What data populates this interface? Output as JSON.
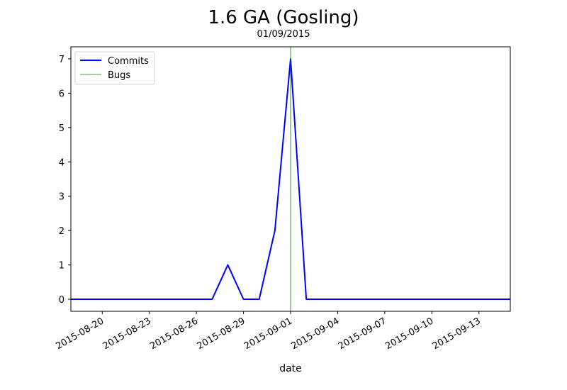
{
  "chart_data": {
    "type": "line",
    "title": "1.6 GA (Gosling)",
    "subtitle": "01/09/2015",
    "xlabel": "date",
    "ylabel": "",
    "x_range": [
      "2015-08-18",
      "2015-09-15"
    ],
    "ylim": [
      -0.35,
      7.35
    ],
    "yticks": [
      0,
      1,
      2,
      3,
      4,
      5,
      6,
      7
    ],
    "xticks": [
      "2015-08-20",
      "2015-08-23",
      "2015-08-26",
      "2015-08-29",
      "2015-09-01",
      "2015-09-04",
      "2015-09-07",
      "2015-09-10",
      "2015-09-13"
    ],
    "grid": false,
    "legend_position": "top-left",
    "series": [
      {
        "name": "Commits",
        "color": "#0000ff",
        "points": [
          [
            "2015-08-18",
            0
          ],
          [
            "2015-08-19",
            0
          ],
          [
            "2015-08-20",
            0
          ],
          [
            "2015-08-21",
            0
          ],
          [
            "2015-08-22",
            0
          ],
          [
            "2015-08-23",
            0
          ],
          [
            "2015-08-24",
            0
          ],
          [
            "2015-08-25",
            0
          ],
          [
            "2015-08-26",
            0
          ],
          [
            "2015-08-27",
            0
          ],
          [
            "2015-08-28",
            1
          ],
          [
            "2015-08-29",
            0
          ],
          [
            "2015-08-30",
            0
          ],
          [
            "2015-08-31",
            2
          ],
          [
            "2015-09-01",
            7
          ],
          [
            "2015-09-02",
            0
          ],
          [
            "2015-09-03",
            0
          ],
          [
            "2015-09-04",
            0
          ],
          [
            "2015-09-05",
            0
          ],
          [
            "2015-09-06",
            0
          ],
          [
            "2015-09-07",
            0
          ],
          [
            "2015-09-08",
            0
          ],
          [
            "2015-09-09",
            0
          ],
          [
            "2015-09-10",
            0
          ],
          [
            "2015-09-11",
            0
          ],
          [
            "2015-09-12",
            0
          ],
          [
            "2015-09-13",
            0
          ],
          [
            "2015-09-14",
            0
          ],
          [
            "2015-09-15",
            0
          ]
        ]
      },
      {
        "name": "Bugs",
        "color": "#008000",
        "vlines": [
          "2015-09-01"
        ]
      }
    ]
  }
}
